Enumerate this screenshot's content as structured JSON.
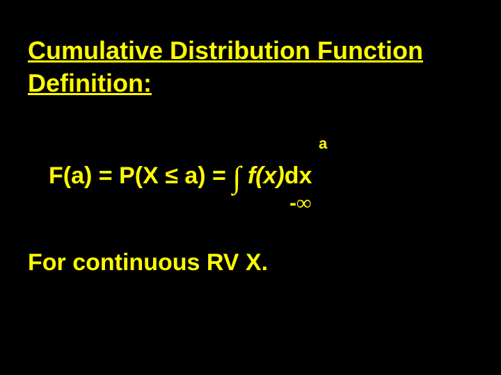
{
  "slide": {
    "title": "Cumulative Distribution Function Definition:",
    "formula": {
      "lhs": "F(a) = P(X ",
      "le": "≤",
      "mid": " a) = ",
      "integral": "∫",
      "space": " ",
      "fx": "f(x)",
      "dx": "dx",
      "upper_limit": "a",
      "lower_limit_prefix": "-",
      "lower_limit_infinity": "∞"
    },
    "continuous_text": "For continuous RV X.",
    "colors": {
      "background": "#000000",
      "text": "#fffb00"
    },
    "typography": {
      "title_fontsize": 36,
      "formula_fontsize": 34,
      "limit_fontsize": 22,
      "body_fontsize": 34,
      "font_weight": "bold"
    }
  }
}
